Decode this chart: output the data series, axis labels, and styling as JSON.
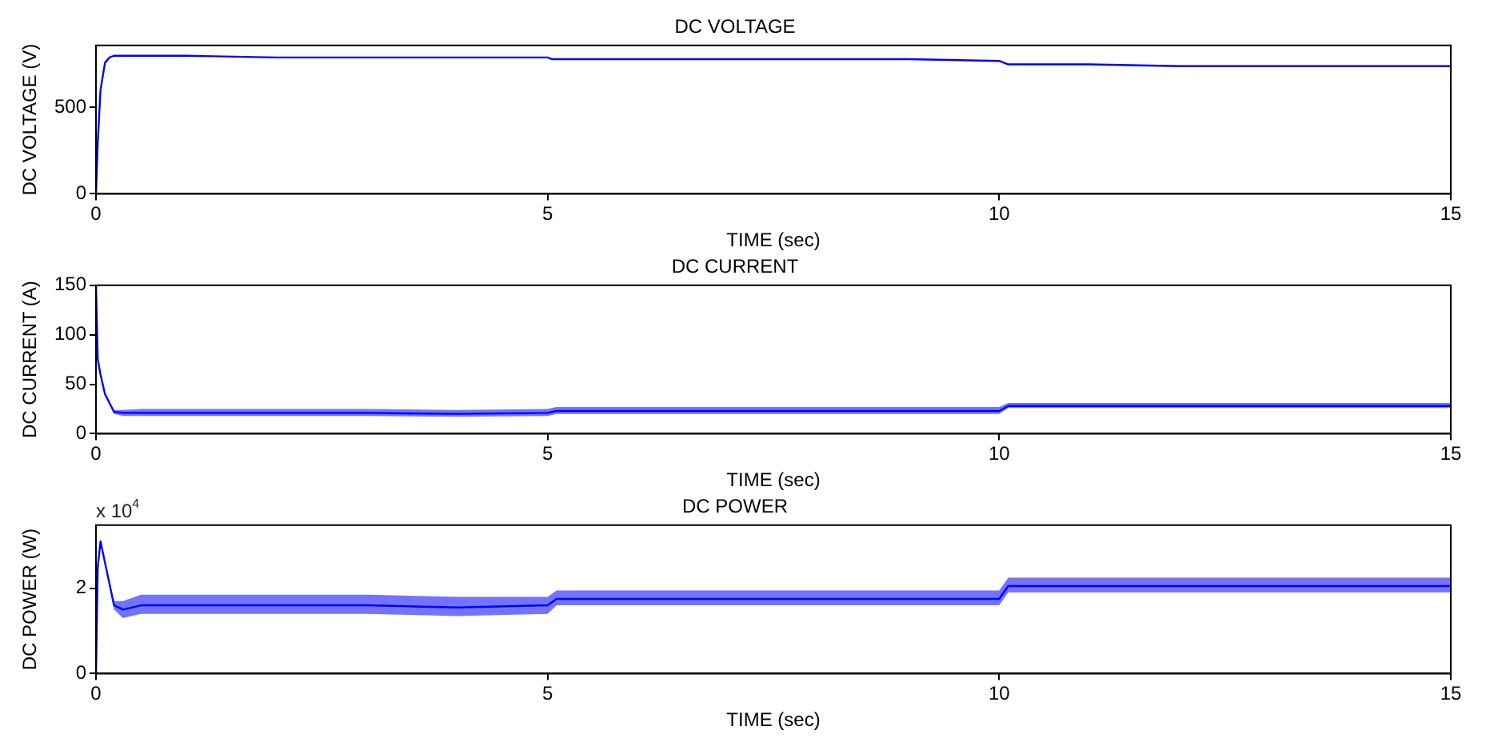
{
  "chart_data": [
    {
      "type": "line",
      "title": "DC VOLTAGE",
      "xlabel": "TIME (sec)",
      "ylabel": "DC VOLTAGE (V)",
      "xlim": [
        0,
        15
      ],
      "xticks": [
        0,
        5,
        10,
        15
      ],
      "ylim": [
        0,
        860
      ],
      "yticks": [
        0,
        500
      ],
      "grid": false,
      "legend": false,
      "marker": "none",
      "line_style": "solid",
      "x": [
        0,
        0.02,
        0.05,
        0.1,
        0.15,
        0.2,
        0.5,
        1,
        2,
        3,
        4,
        5,
        5.05,
        6,
        7,
        8,
        9,
        10,
        10.1,
        11,
        12,
        13,
        14,
        15
      ],
      "series": [
        {
          "color": "#0000ff",
          "values": [
            0,
            300,
            600,
            760,
            790,
            800,
            800,
            800,
            790,
            790,
            790,
            790,
            780,
            780,
            780,
            780,
            780,
            770,
            750,
            750,
            740,
            740,
            740,
            740
          ]
        }
      ]
    },
    {
      "type": "line",
      "title": "DC CURRENT",
      "xlabel": "TIME (sec)",
      "ylabel": "DC CURRENT (A)",
      "xlim": [
        0,
        15
      ],
      "xticks": [
        0,
        5,
        10,
        15
      ],
      "ylim": [
        0,
        150
      ],
      "yticks": [
        0,
        50,
        100,
        150
      ],
      "grid": false,
      "legend": false,
      "marker": "none",
      "line_style": "solid",
      "x": [
        0,
        0.02,
        0.05,
        0.1,
        0.2,
        0.3,
        0.5,
        1,
        2,
        3,
        4,
        5,
        5.1,
        6,
        7,
        8,
        9,
        10,
        10.1,
        11,
        12,
        13,
        14,
        15
      ],
      "series": [
        {
          "color": "#0000ff",
          "values": [
            150,
            75,
            60,
            40,
            22,
            21,
            21,
            21,
            21,
            21,
            20,
            21,
            23,
            23,
            23,
            23,
            23,
            23,
            28,
            28,
            28,
            28,
            28,
            28
          ],
          "lower": [
            150,
            75,
            60,
            40,
            20,
            18,
            18,
            18,
            18,
            18,
            17,
            18,
            20,
            20,
            20,
            20,
            20,
            20,
            26,
            26,
            26,
            26,
            26,
            26
          ],
          "upper": [
            150,
            75,
            60,
            40,
            24,
            24,
            25,
            25,
            25,
            25,
            24,
            25,
            27,
            27,
            27,
            27,
            27,
            27,
            31,
            31,
            31,
            31,
            31,
            31
          ]
        }
      ]
    },
    {
      "type": "line",
      "title": "DC POWER",
      "xlabel": "TIME (sec)",
      "ylabel": "DC POWER (W)",
      "xlim": [
        0,
        15
      ],
      "xticks": [
        0,
        5,
        10,
        15
      ],
      "ylim": [
        0,
        3.48
      ],
      "yticks": [
        0,
        2
      ],
      "grid": false,
      "legend": false,
      "marker": "none",
      "line_style": "solid",
      "annotations": [
        "x 10$^{4}$"
      ],
      "x": [
        0,
        0.02,
        0.05,
        0.1,
        0.2,
        0.3,
        0.5,
        1,
        2,
        3,
        4,
        5,
        5.1,
        6,
        7,
        8,
        9,
        10,
        10.1,
        11,
        12,
        13,
        14,
        15
      ],
      "series": [
        {
          "color": "#0000ff",
          "values": [
            0,
            2.5,
            3.1,
            2.6,
            1.6,
            1.5,
            1.6,
            1.6,
            1.6,
            1.6,
            1.55,
            1.6,
            1.75,
            1.75,
            1.75,
            1.75,
            1.75,
            1.75,
            2.05,
            2.05,
            2.05,
            2.05,
            2.05,
            2.05
          ],
          "lower": [
            0,
            2.5,
            3.1,
            2.6,
            1.5,
            1.3,
            1.4,
            1.4,
            1.4,
            1.4,
            1.35,
            1.4,
            1.6,
            1.6,
            1.6,
            1.6,
            1.6,
            1.6,
            1.9,
            1.9,
            1.9,
            1.9,
            1.9,
            1.9
          ],
          "upper": [
            0,
            2.5,
            3.1,
            2.6,
            1.7,
            1.7,
            1.85,
            1.85,
            1.85,
            1.85,
            1.8,
            1.8,
            1.95,
            1.95,
            1.95,
            1.95,
            1.95,
            1.95,
            2.25,
            2.25,
            2.25,
            2.25,
            2.25,
            2.25
          ]
        }
      ]
    }
  ]
}
